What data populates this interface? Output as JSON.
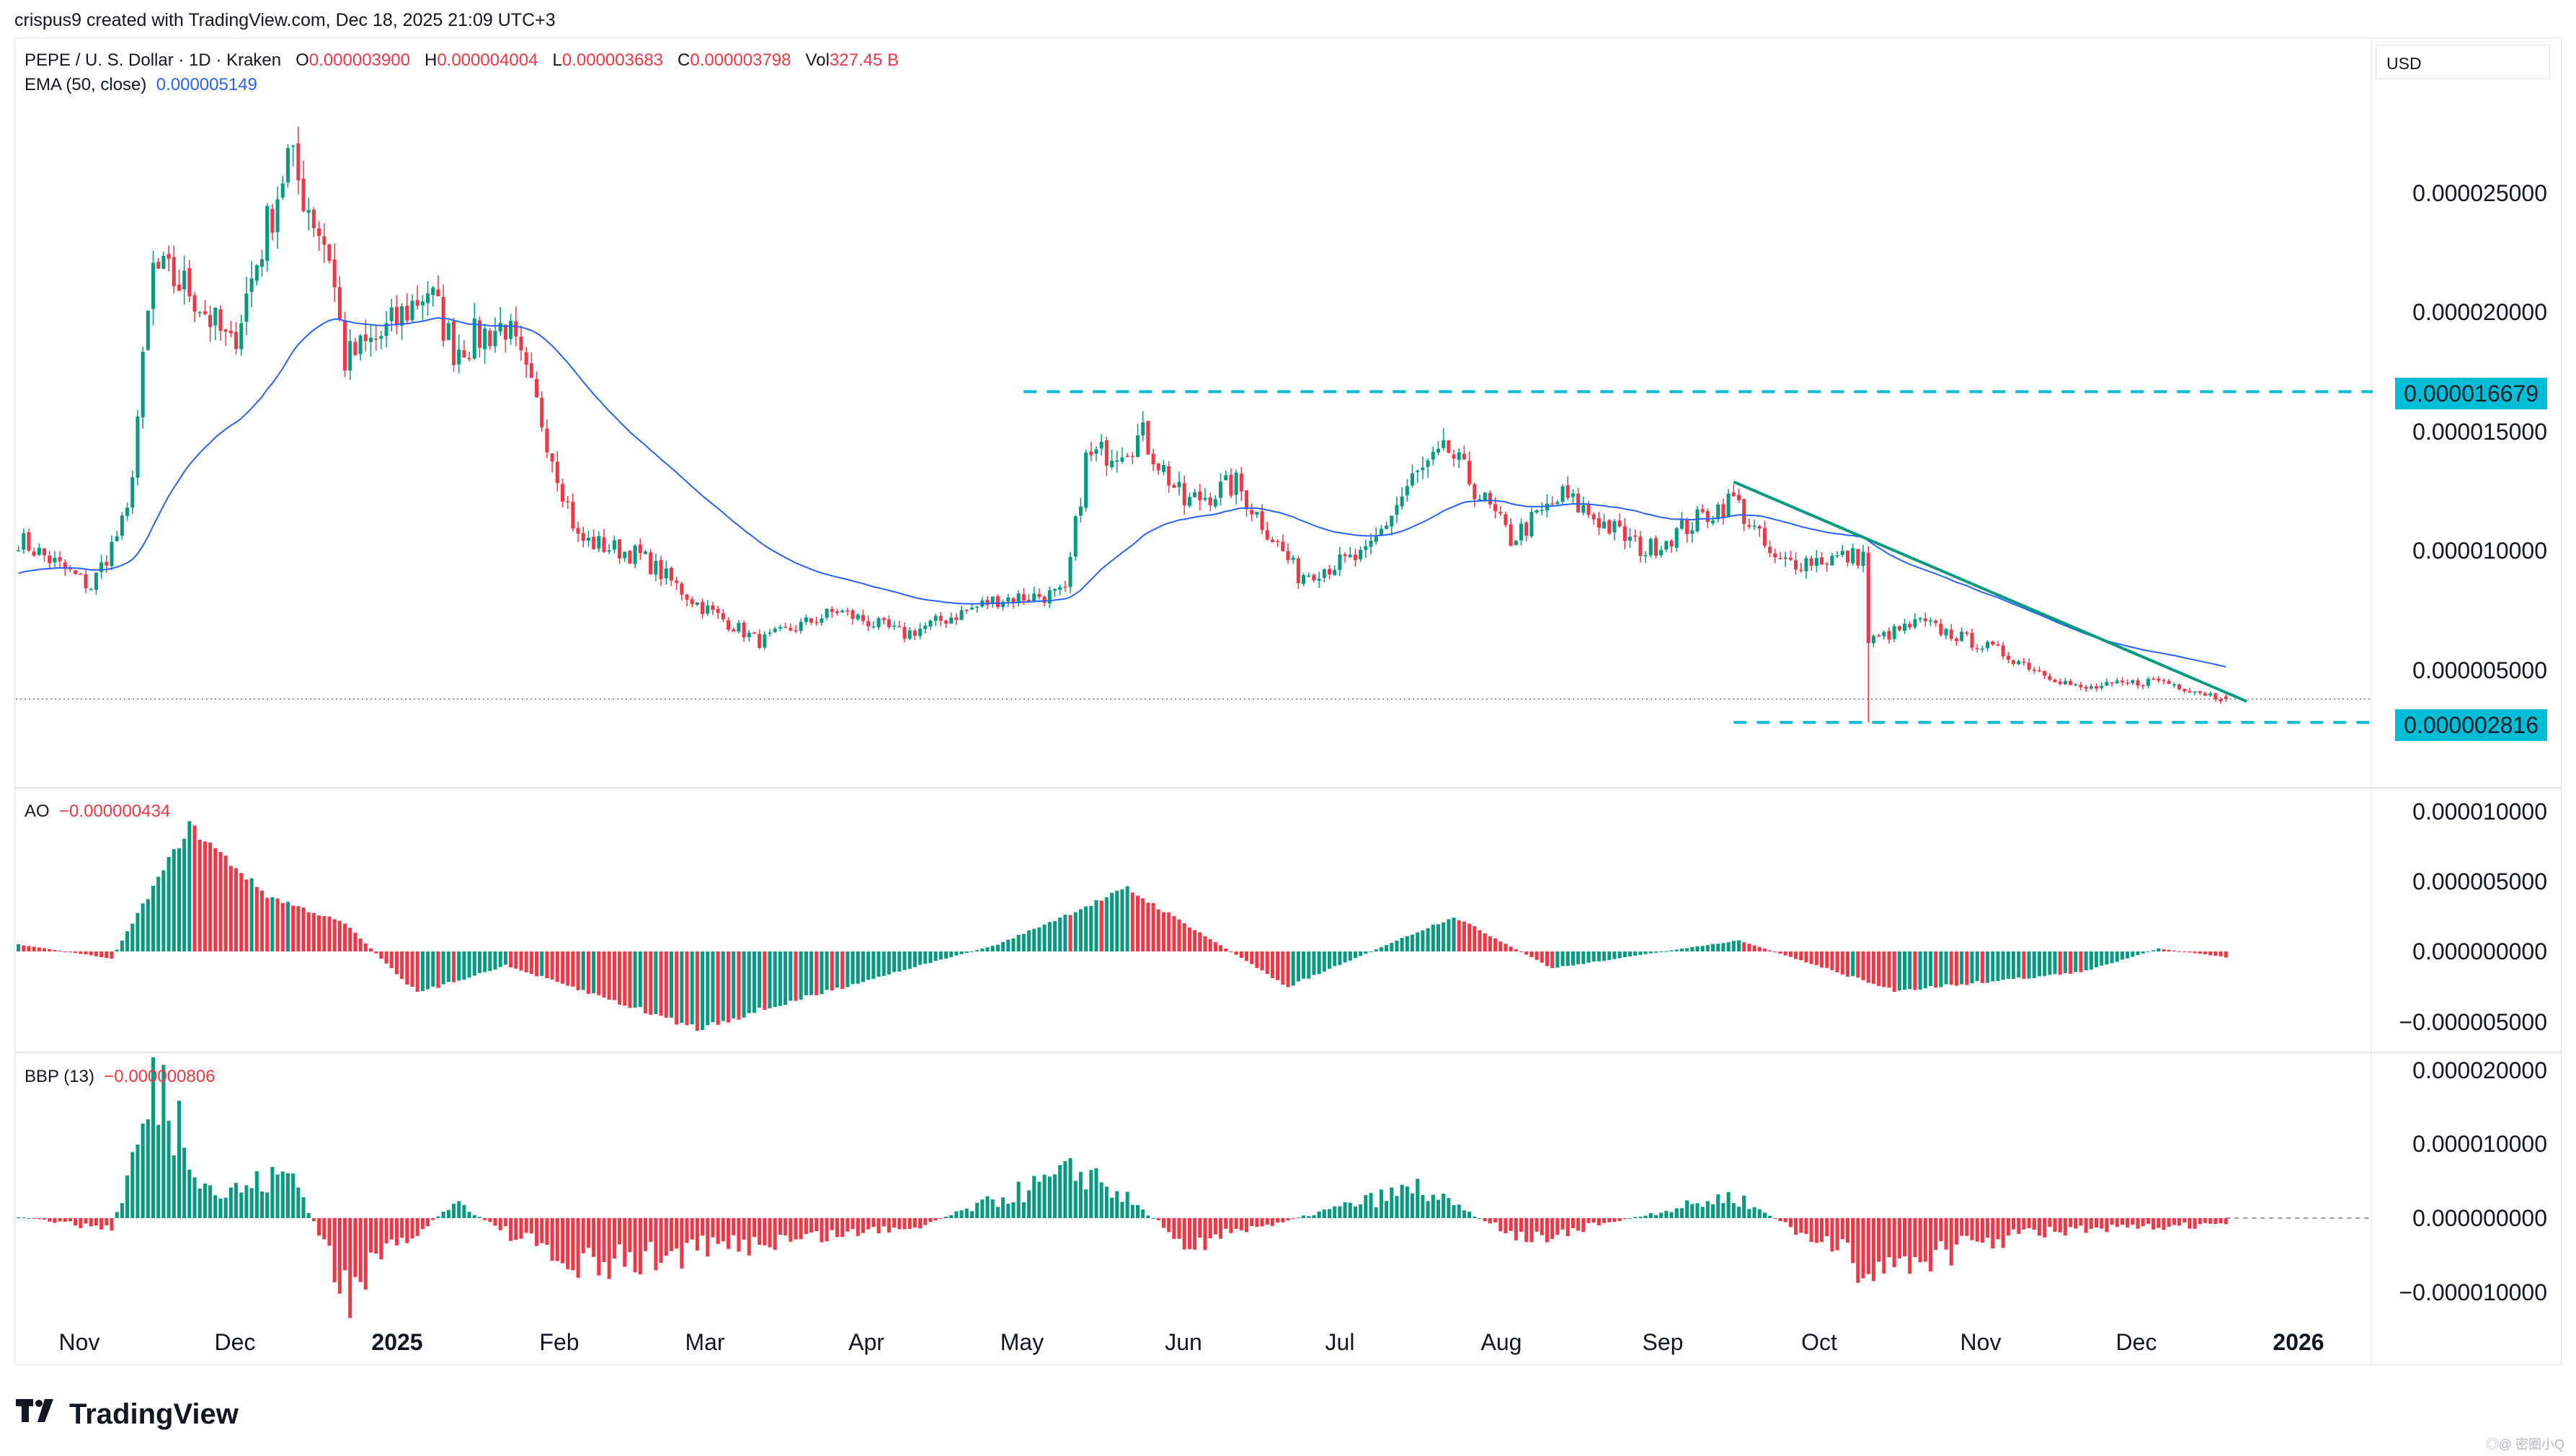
{
  "header": {
    "created_text": "crispus9 created with TradingView.com, Dec 18, 2025 21:09 UTC+3"
  },
  "legend_main": {
    "symbol": "PEPE / U. S. Dollar · 1D · Kraken",
    "o_label": "O",
    "o_val": "0.000003900",
    "h_label": "H",
    "h_val": "0.000004004",
    "l_label": "L",
    "l_val": "0.000003683",
    "c_label": "C",
    "c_val": "0.000003798",
    "vol_label": "Vol",
    "vol_val": "327.45 B"
  },
  "legend_ema": {
    "label": "EMA (50, close)",
    "value": "0.000005149"
  },
  "legend_ao": {
    "label": "AO",
    "value": "−0.000000434"
  },
  "legend_bbp": {
    "label": "BBP (13)",
    "value": "−0.000000806"
  },
  "currency": "USD",
  "price_axis": [
    "0.000025000",
    "0.000020000",
    "0.000015000",
    "0.000010000",
    "0.000005000"
  ],
  "ao_axis": [
    "0.000010000",
    "0.000005000",
    "0.000000000",
    "−0.000005000"
  ],
  "bbp_axis": [
    "0.000020000",
    "0.000010000",
    "0.000000000",
    "−0.000010000"
  ],
  "tags": {
    "resistance": "0.000016679",
    "support": "0.000002816"
  },
  "x_axis": [
    "Nov",
    "Dec",
    "2025",
    "Feb",
    "Mar",
    "Apr",
    "May",
    "Jun",
    "Jul",
    "Aug",
    "Sep",
    "Oct",
    "Nov",
    "Dec",
    "2026"
  ],
  "logo_text": "TradingView",
  "watermark": "◎@ 密圈小Q",
  "colors": {
    "up": "#089981",
    "down": "#f23645",
    "ema": "#2962ff",
    "trend": "#089981",
    "level": "#00bcd4"
  },
  "chart_data": [
    {
      "type": "candlestick",
      "title": "PEPE / U. S. Dollar · 1D · Kraken",
      "x_range": [
        "2024-10-18",
        "2025-12-18"
      ],
      "ylim": [
        1.5e-06,
        3e-05
      ],
      "close_path": [
        {
          "date": "2024-10-18",
          "close": 1.05e-05
        },
        {
          "date": "2024-11-01",
          "close": 8.5e-06
        },
        {
          "date": "2024-11-08",
          "close": 1.15e-05
        },
        {
          "date": "2024-11-13",
          "close": 2.18e-05
        },
        {
          "date": "2024-11-20",
          "close": 2.1e-05
        },
        {
          "date": "2024-11-28",
          "close": 1.85e-05
        },
        {
          "date": "2024-12-09",
          "close": 2.65e-05
        },
        {
          "date": "2024-12-17",
          "close": 2.25e-05
        },
        {
          "date": "2024-12-20",
          "close": 1.8e-05
        },
        {
          "date": "2024-12-27",
          "close": 1.9e-05
        },
        {
          "date": "2025-01-05",
          "close": 2.1e-05
        },
        {
          "date": "2025-01-10",
          "close": 1.85e-05
        },
        {
          "date": "2025-01-20",
          "close": 1.95e-05
        },
        {
          "date": "2025-01-27",
          "close": 1.55e-05
        },
        {
          "date": "2025-02-03",
          "close": 1.05e-05
        },
        {
          "date": "2025-02-15",
          "close": 9.8e-06
        },
        {
          "date": "2025-02-26",
          "close": 7.8e-06
        },
        {
          "date": "2025-03-10",
          "close": 6.2e-06
        },
        {
          "date": "2025-03-25",
          "close": 7.5e-06
        },
        {
          "date": "2025-04-07",
          "close": 6.5e-06
        },
        {
          "date": "2025-04-25",
          "close": 8e-06
        },
        {
          "date": "2025-05-08",
          "close": 8.2e-06
        },
        {
          "date": "2025-05-12",
          "close": 1.38e-05
        },
        {
          "date": "2025-05-23",
          "close": 1.48e-05
        },
        {
          "date": "2025-05-31",
          "close": 1.2e-05
        },
        {
          "date": "2025-06-10",
          "close": 1.28e-05
        },
        {
          "date": "2025-06-22",
          "close": 9e-06
        },
        {
          "date": "2025-07-05",
          "close": 9.8e-06
        },
        {
          "date": "2025-07-14",
          "close": 1.3e-05
        },
        {
          "date": "2025-07-21",
          "close": 1.42e-05
        },
        {
          "date": "2025-08-02",
          "close": 1.05e-05
        },
        {
          "date": "2025-08-12",
          "close": 1.23e-05
        },
        {
          "date": "2025-08-28",
          "close": 1e-05
        },
        {
          "date": "2025-09-14",
          "close": 1.22e-05
        },
        {
          "date": "2025-09-22",
          "close": 9.5e-06
        },
        {
          "date": "2025-10-09",
          "close": 9.8e-06
        },
        {
          "date": "2025-10-10",
          "close": 6.2e-06
        },
        {
          "date": "2025-10-20",
          "close": 7e-06
        },
        {
          "date": "2025-11-04",
          "close": 5.8e-06
        },
        {
          "date": "2025-11-20",
          "close": 4.2e-06
        },
        {
          "date": "2025-12-05",
          "close": 4.6e-06
        },
        {
          "date": "2025-12-18",
          "close": 3.8e-06
        }
      ],
      "ema_50_last": 5.149e-06,
      "last": {
        "open": 3.9e-06,
        "high": 4.004e-06,
        "low": 3.683e-06,
        "close": 3.798e-06,
        "volume": "327.45 B"
      },
      "annotations": {
        "resistance_level": 1.6679e-05,
        "support_level": 2.816e-06,
        "trendline": {
          "from": {
            "date": "2025-09-14",
            "value": 1.29e-05
          },
          "to": {
            "date": "2025-12-22",
            "value": 3.7e-06
          }
        }
      },
      "grid": false
    },
    {
      "type": "histogram",
      "title": "AO",
      "last": -4.34e-07,
      "ylim": [
        -6e-06,
        1e-05
      ],
      "path": [
        {
          "date": "2024-10-18",
          "v": 5e-07
        },
        {
          "date": "2024-11-05",
          "v": -5e-07
        },
        {
          "date": "2024-11-20",
          "v": 9e-06
        },
        {
          "date": "2024-12-05",
          "v": 4e-06
        },
        {
          "date": "2024-12-20",
          "v": 2e-06
        },
        {
          "date": "2025-01-03",
          "v": -3e-06
        },
        {
          "date": "2025-01-20",
          "v": -1e-06
        },
        {
          "date": "2025-02-26",
          "v": -5.5e-06
        },
        {
          "date": "2025-04-05",
          "v": -1.5e-06
        },
        {
          "date": "2025-04-25",
          "v": 5e-07
        },
        {
          "date": "2025-05-20",
          "v": 4.5e-06
        },
        {
          "date": "2025-06-20",
          "v": -2.5e-06
        },
        {
          "date": "2025-07-22",
          "v": 2.5e-06
        },
        {
          "date": "2025-08-10",
          "v": -1.2e-06
        },
        {
          "date": "2025-09-15",
          "v": 8e-07
        },
        {
          "date": "2025-10-15",
          "v": -2.8e-06
        },
        {
          "date": "2025-11-20",
          "v": -1.5e-06
        },
        {
          "date": "2025-12-05",
          "v": 2e-07
        },
        {
          "date": "2025-12-18",
          "v": -4e-07
        }
      ]
    },
    {
      "type": "histogram",
      "title": "BBP (13)",
      "last": -8.06e-07,
      "ylim": [
        -1.1e-05,
        2e-05
      ],
      "path": [
        {
          "date": "2024-10-18",
          "v": 2e-07
        },
        {
          "date": "2024-11-05",
          "v": -1.5e-06
        },
        {
          "date": "2024-11-14",
          "v": 1.85e-05
        },
        {
          "date": "2024-11-25",
          "v": 3e-06
        },
        {
          "date": "2024-12-10",
          "v": 6e-06
        },
        {
          "date": "2024-12-20",
          "v": -1e-05
        },
        {
          "date": "2025-01-10",
          "v": 2e-06
        },
        {
          "date": "2025-02-03",
          "v": -7e-06
        },
        {
          "date": "2025-03-01",
          "v": -4e-06
        },
        {
          "date": "2025-04-10",
          "v": -1e-06
        },
        {
          "date": "2025-05-12",
          "v": 6.5e-06
        },
        {
          "date": "2025-06-01",
          "v": -3.5e-06
        },
        {
          "date": "2025-07-15",
          "v": 4e-06
        },
        {
          "date": "2025-08-05",
          "v": -3e-06
        },
        {
          "date": "2025-09-14",
          "v": 3e-06
        },
        {
          "date": "2025-10-10",
          "v": -7e-06
        },
        {
          "date": "2025-11-10",
          "v": -2e-06
        },
        {
          "date": "2025-12-18",
          "v": -8e-07
        }
      ]
    }
  ]
}
